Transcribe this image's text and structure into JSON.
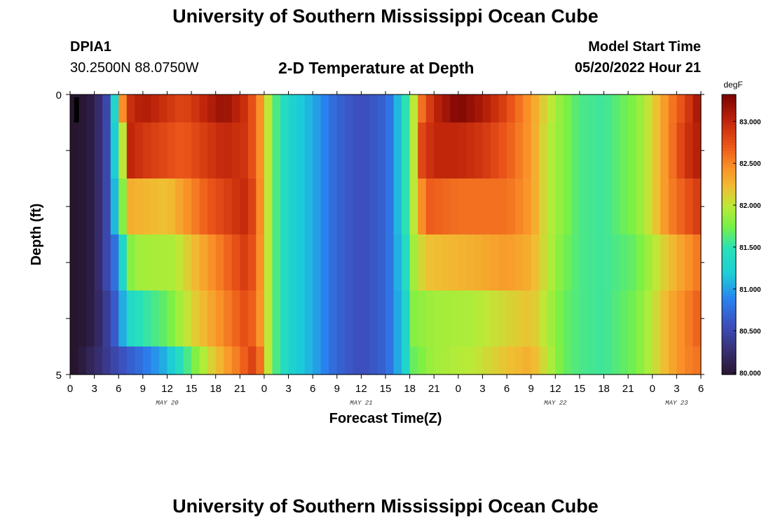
{
  "page": {
    "title": "University of Southern Mississippi Ocean Cube",
    "station_id": "DPIA1",
    "coordinates": "30.2500N  88.0750W",
    "subtitle": "2-D Temperature at Depth",
    "model_start_label": "Model Start Time",
    "model_start_value": "05/20/2022 Hour 21",
    "footer_title": "University of Southern Mississippi Ocean Cube"
  },
  "chart_data": {
    "type": "heatmap",
    "title": "2-D Temperature at Depth",
    "xlabel": "Forecast Time(Z)",
    "ylabel": "Depth (ft)",
    "colorbar_label": "degF",
    "colorbar_ticks": [
      "80.000",
      "80.500",
      "81.000",
      "81.500",
      "82.000",
      "82.500",
      "83.000"
    ],
    "colorbar_range": [
      79.98,
      83.32
    ],
    "x_range_hours": [
      0,
      78
    ],
    "x_tick_labels": [
      "0",
      "3",
      "6",
      "9",
      "12",
      "15",
      "18",
      "21",
      "0",
      "3",
      "6",
      "9",
      "12",
      "15",
      "18",
      "21",
      "0",
      "3",
      "6",
      "9",
      "12",
      "15",
      "18",
      "21",
      "0",
      "3",
      "6"
    ],
    "date_labels": [
      {
        "label": "MAY 20",
        "hour": 12
      },
      {
        "label": "MAY 21",
        "hour": 36
      },
      {
        "label": "MAY 22",
        "hour": 60
      },
      {
        "label": "MAY 23",
        "hour": 75
      }
    ],
    "y_tick_labels": [
      {
        "depth": 0,
        "label": "0"
      },
      {
        "depth": 5,
        "label": "5"
      }
    ],
    "y_range_ft": [
      0,
      5
    ],
    "depth_rows": [
      {
        "top": 0,
        "bottom": 0.5,
        "keys": [
          [
            0,
            79.9
          ],
          [
            3,
            80.1
          ],
          [
            4.5,
            80.5
          ],
          [
            5.5,
            81.3
          ],
          [
            6.3,
            82.3
          ],
          [
            7,
            82.9
          ],
          [
            9,
            83.1
          ],
          [
            14,
            82.8
          ],
          [
            19,
            83.2
          ],
          [
            22,
            82.9
          ],
          [
            24,
            82.3
          ],
          [
            25,
            81.7
          ],
          [
            27,
            81.3
          ],
          [
            30,
            81.05
          ],
          [
            33,
            80.7
          ],
          [
            36,
            80.55
          ],
          [
            39,
            80.7
          ],
          [
            40,
            80.9
          ],
          [
            41.5,
            81.5
          ],
          [
            42.5,
            82.0
          ],
          [
            43.5,
            82.6
          ],
          [
            45,
            83.0
          ],
          [
            48,
            83.3
          ],
          [
            51,
            83.1
          ],
          [
            54,
            82.8
          ],
          [
            57,
            82.4
          ],
          [
            59,
            82.05
          ],
          [
            61,
            81.8
          ],
          [
            63,
            81.6
          ],
          [
            66,
            81.55
          ],
          [
            70,
            81.8
          ],
          [
            72,
            82.1
          ],
          [
            74,
            82.5
          ],
          [
            76,
            82.8
          ],
          [
            78,
            83.2
          ]
        ]
      },
      {
        "top": 0.5,
        "bottom": 1.5,
        "keys": [
          [
            0,
            79.9
          ],
          [
            3,
            80.1
          ],
          [
            4.5,
            80.5
          ],
          [
            5.5,
            81.2
          ],
          [
            6.4,
            81.9
          ],
          [
            7.5,
            83.0
          ],
          [
            9,
            82.9
          ],
          [
            14,
            82.7
          ],
          [
            19,
            83.0
          ],
          [
            22,
            82.9
          ],
          [
            24,
            82.3
          ],
          [
            25,
            81.7
          ],
          [
            27,
            81.3
          ],
          [
            30,
            81.05
          ],
          [
            33,
            80.7
          ],
          [
            36,
            80.55
          ],
          [
            39,
            80.7
          ],
          [
            40,
            80.9
          ],
          [
            41.5,
            81.5
          ],
          [
            42.5,
            82.0
          ],
          [
            43.5,
            82.8
          ],
          [
            45,
            83.0
          ],
          [
            48,
            83.0
          ],
          [
            51,
            82.9
          ],
          [
            54,
            82.7
          ],
          [
            57,
            82.4
          ],
          [
            59,
            82.0
          ],
          [
            61,
            81.8
          ],
          [
            63,
            81.6
          ],
          [
            66,
            81.55
          ],
          [
            70,
            81.8
          ],
          [
            72,
            82.1
          ],
          [
            74,
            82.5
          ],
          [
            76,
            82.9
          ],
          [
            78,
            83.1
          ]
        ]
      },
      {
        "top": 1.5,
        "bottom": 2.5,
        "keys": [
          [
            0,
            79.9
          ],
          [
            3,
            80.1
          ],
          [
            4.5,
            80.5
          ],
          [
            5.5,
            81.1
          ],
          [
            6.5,
            81.8
          ],
          [
            7.5,
            82.3
          ],
          [
            12,
            82.2
          ],
          [
            17,
            82.7
          ],
          [
            22,
            83.0
          ],
          [
            24,
            82.3
          ],
          [
            25,
            81.7
          ],
          [
            27,
            81.3
          ],
          [
            30,
            81.05
          ],
          [
            33,
            80.7
          ],
          [
            36,
            80.55
          ],
          [
            39,
            80.7
          ],
          [
            40,
            80.9
          ],
          [
            41.5,
            81.5
          ],
          [
            42.5,
            82.0
          ],
          [
            44,
            82.7
          ],
          [
            48,
            82.6
          ],
          [
            54,
            82.6
          ],
          [
            57,
            82.4
          ],
          [
            59,
            82.0
          ],
          [
            61,
            81.8
          ],
          [
            63,
            81.6
          ],
          [
            66,
            81.55
          ],
          [
            70,
            81.8
          ],
          [
            72,
            82.1
          ],
          [
            74,
            82.5
          ],
          [
            76,
            82.7
          ],
          [
            78,
            82.9
          ]
        ]
      },
      {
        "top": 2.5,
        "bottom": 3.5,
        "keys": [
          [
            0,
            79.9
          ],
          [
            3,
            80.1
          ],
          [
            4.5,
            80.5
          ],
          [
            6,
            80.9
          ],
          [
            7,
            81.7
          ],
          [
            8,
            81.9
          ],
          [
            13,
            81.95
          ],
          [
            15,
            82.2
          ],
          [
            19,
            82.6
          ],
          [
            22,
            82.9
          ],
          [
            24,
            82.3
          ],
          [
            25,
            81.7
          ],
          [
            27,
            81.3
          ],
          [
            30,
            81.05
          ],
          [
            33,
            80.7
          ],
          [
            36,
            80.55
          ],
          [
            39,
            80.7
          ],
          [
            40,
            80.9
          ],
          [
            41.5,
            81.4
          ],
          [
            42.5,
            81.9
          ],
          [
            44,
            82.2
          ],
          [
            50,
            82.3
          ],
          [
            54,
            82.4
          ],
          [
            57,
            82.3
          ],
          [
            59,
            82.0
          ],
          [
            61,
            81.75
          ],
          [
            63,
            81.6
          ],
          [
            66,
            81.55
          ],
          [
            70,
            81.7
          ],
          [
            72,
            81.95
          ],
          [
            74,
            82.2
          ],
          [
            76,
            82.4
          ],
          [
            78,
            82.6
          ]
        ]
      },
      {
        "top": 3.5,
        "bottom": 4.5,
        "keys": [
          [
            0,
            79.9
          ],
          [
            3,
            80.1
          ],
          [
            5,
            80.5
          ],
          [
            6,
            80.8
          ],
          [
            7,
            81.3
          ],
          [
            9,
            81.5
          ],
          [
            12,
            81.7
          ],
          [
            15,
            82.1
          ],
          [
            19,
            82.5
          ],
          [
            22,
            82.8
          ],
          [
            24,
            82.3
          ],
          [
            25,
            81.7
          ],
          [
            27,
            81.3
          ],
          [
            30,
            81.05
          ],
          [
            33,
            80.7
          ],
          [
            36,
            80.55
          ],
          [
            39,
            80.7
          ],
          [
            40,
            80.9
          ],
          [
            41.5,
            81.3
          ],
          [
            42.5,
            81.8
          ],
          [
            45,
            81.9
          ],
          [
            50,
            81.95
          ],
          [
            54,
            82.1
          ],
          [
            57,
            82.2
          ],
          [
            59,
            81.95
          ],
          [
            61,
            81.7
          ],
          [
            63,
            81.6
          ],
          [
            66,
            81.55
          ],
          [
            70,
            81.75
          ],
          [
            72,
            82.0
          ],
          [
            74,
            82.3
          ],
          [
            76,
            82.5
          ],
          [
            78,
            82.7
          ]
        ]
      },
      {
        "top": 4.5,
        "bottom": 5,
        "keys": [
          [
            0,
            79.9
          ],
          [
            3,
            80.2
          ],
          [
            6,
            80.55
          ],
          [
            9,
            80.8
          ],
          [
            12,
            81.1
          ],
          [
            15,
            81.7
          ],
          [
            18,
            82.2
          ],
          [
            21,
            82.6
          ],
          [
            23,
            82.9
          ],
          [
            24,
            82.3
          ],
          [
            25,
            81.7
          ],
          [
            27,
            81.3
          ],
          [
            30,
            81.05
          ],
          [
            33,
            80.7
          ],
          [
            36,
            80.55
          ],
          [
            39,
            80.7
          ],
          [
            40,
            80.9
          ],
          [
            41.5,
            81.3
          ],
          [
            42.5,
            81.7
          ],
          [
            45,
            81.9
          ],
          [
            50,
            82.0
          ],
          [
            54,
            82.2
          ],
          [
            57,
            82.3
          ],
          [
            59,
            82.0
          ],
          [
            61,
            81.7
          ],
          [
            63,
            81.6
          ],
          [
            66,
            81.55
          ],
          [
            70,
            81.75
          ],
          [
            72,
            82.0
          ],
          [
            74,
            82.3
          ],
          [
            76,
            82.5
          ],
          [
            78,
            82.6
          ]
        ]
      }
    ],
    "markers": [
      {
        "hour_start": 0.5,
        "hour_end": 1.1,
        "depth_start": 0.05,
        "depth_end": 0.5,
        "color": "#000000"
      }
    ]
  }
}
